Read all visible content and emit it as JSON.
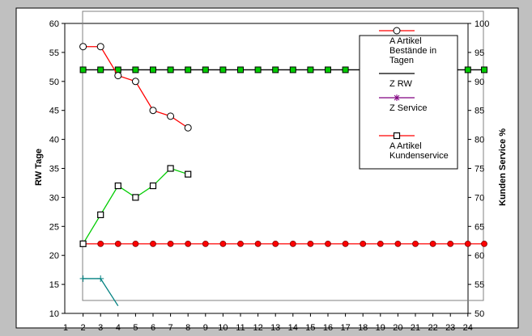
{
  "chart_data": {
    "type": "line",
    "ylabel": "RW Tage",
    "y2label": "Kunden Service  %",
    "ylim": [
      10,
      60
    ],
    "y2lim": [
      50,
      100
    ],
    "xlim": [
      1,
      24
    ],
    "x_ticks": [
      "1",
      "2",
      "3",
      "4",
      "5",
      "6",
      "7",
      "8",
      "9",
      "10",
      "11",
      "12",
      "13",
      "14",
      "15",
      "16",
      "17",
      "18",
      "19",
      "20",
      "21",
      "22",
      "23",
      "24"
    ],
    "y_ticks": [
      "10",
      "15",
      "20",
      "25",
      "30",
      "35",
      "40",
      "45",
      "50",
      "55",
      "60"
    ],
    "y2_ticks": [
      "50",
      "55",
      "60",
      "65",
      "70",
      "75",
      "80",
      "85",
      "90",
      "95",
      "100"
    ],
    "legend_position": "top-right",
    "series": [
      {
        "name": "A Artikel Bestände in Tagen",
        "axis": "left",
        "color": "#ff0000",
        "marker": "open-circle",
        "x": [
          2,
          3,
          4,
          5,
          6,
          7,
          8
        ],
        "values": [
          56,
          56,
          51,
          50,
          45,
          44,
          42
        ]
      },
      {
        "name": "Z RW",
        "axis": "left",
        "color": "#000000",
        "marker": "green-square",
        "x": [
          2,
          3,
          4,
          5,
          6,
          7,
          8,
          9,
          10,
          11,
          12,
          13,
          14,
          15,
          16,
          17,
          18,
          19,
          20,
          21,
          22,
          23,
          24,
          25
        ],
        "values": [
          52,
          52,
          52,
          52,
          52,
          52,
          52,
          52,
          52,
          52,
          52,
          52,
          52,
          52,
          52,
          52,
          52,
          52,
          52,
          52,
          52,
          52,
          52,
          52
        ]
      },
      {
        "name": "Z Service",
        "axis": "right",
        "color": "#800080",
        "marker": "star",
        "x": [
          2,
          3,
          4,
          5,
          6,
          7,
          8,
          9,
          10,
          11,
          12,
          13,
          14,
          15,
          16,
          17,
          18,
          19,
          20,
          21,
          22,
          23,
          24,
          25
        ],
        "values": [
          62,
          62,
          62,
          62,
          62,
          62,
          62,
          62,
          62,
          62,
          62,
          62,
          62,
          62,
          62,
          62,
          62,
          62,
          62,
          62,
          62,
          62,
          62,
          62
        ]
      },
      {
        "name": "A Artikel Kundenservice",
        "axis": "right",
        "color": "#ff0000",
        "marker": "open-square",
        "x": [
          2,
          3,
          4,
          5,
          6,
          7,
          8
        ],
        "values": [
          62,
          67,
          72,
          70,
          72,
          75,
          74
        ]
      },
      {
        "name": "",
        "axis": "right",
        "color": "#008080",
        "marker": "plus",
        "x": [
          2,
          3,
          4
        ],
        "values": [
          56,
          56,
          51.3
        ]
      }
    ],
    "legend": [
      {
        "label_lines": [
          "A Artikel",
          "Bestände in",
          "Tagen"
        ],
        "color": "#ff0000",
        "marker": "open-circle"
      },
      {
        "label_lines": [
          "Z RW"
        ],
        "color": "#000000",
        "marker": "none"
      },
      {
        "label_lines": [
          "Z Service"
        ],
        "color": "#800080",
        "marker": "star"
      },
      {
        "label_lines": [
          "A Artikel",
          "Kundenservice"
        ],
        "color": "#ff0000",
        "marker": "open-square"
      }
    ]
  },
  "colors": {
    "background": "#c0c0c0",
    "plot_area": "#ffffff",
    "zrw_marker": "#00cc00",
    "zservice_marker": "#ff0000",
    "service_line": "#00cc00",
    "teal": "#008080"
  }
}
